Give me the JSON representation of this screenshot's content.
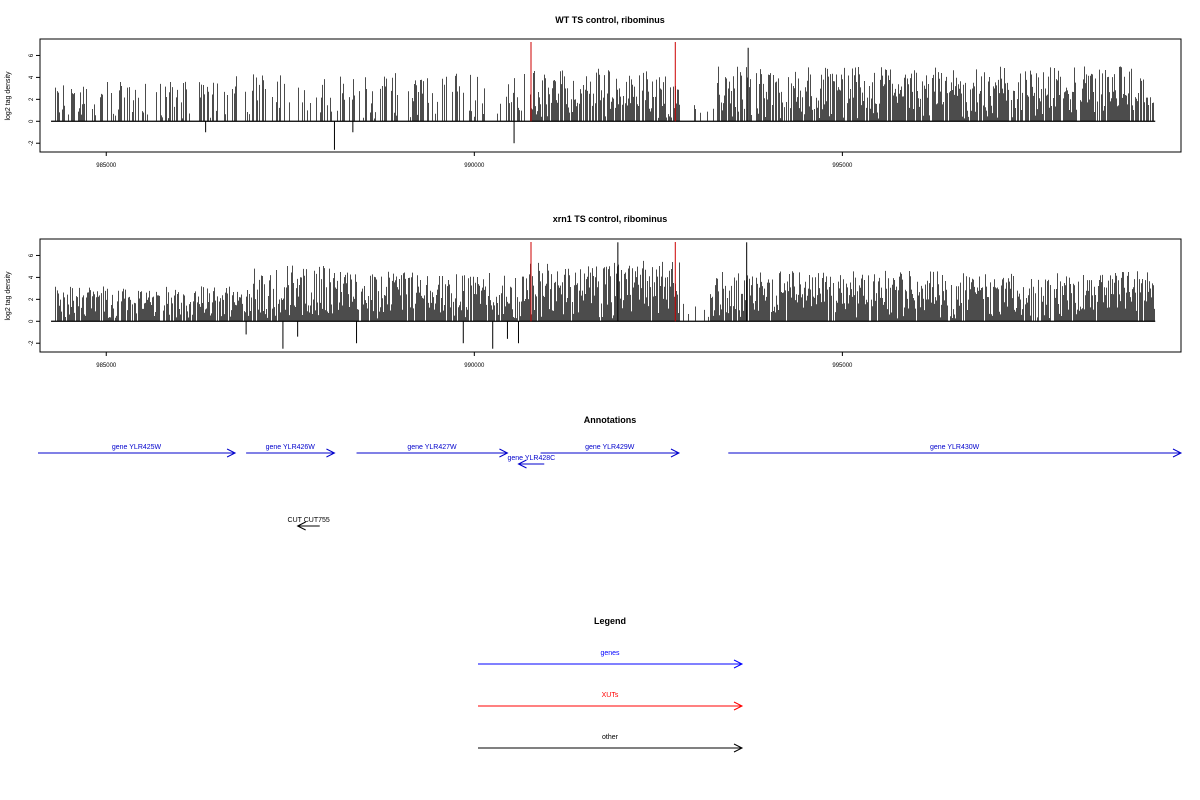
{
  "chart_data": [
    {
      "type": "bar",
      "title": "WT TS control, ribominus",
      "ylabel": "log2 tag density",
      "xlim": [
        984100,
        999600
      ],
      "ylim": [
        -2.8,
        7.5
      ],
      "x_ticks": [
        985000,
        990000,
        995000
      ],
      "x_tick_labels": [
        "985000",
        "990000",
        "995000"
      ],
      "y_ticks": [
        -2,
        0,
        2,
        4,
        6
      ],
      "y_tick_labels": [
        "-2",
        "0",
        "2",
        "4",
        "6"
      ],
      "gene_range": [
        984250,
        999250
      ],
      "markers": [
        990770,
        992730
      ],
      "marker_color": "#cc0000",
      "regions": [
        {
          "from": 984300,
          "to": 986700,
          "density": 0.45,
          "max": 3.6
        },
        {
          "from": 986700,
          "to": 990700,
          "density": 0.4,
          "max": 4.4
        },
        {
          "from": 990750,
          "to": 992800,
          "density": 0.9,
          "max": 4.9
        },
        {
          "from": 992800,
          "to": 993300,
          "density": 0.15,
          "max": 1.5
        },
        {
          "from": 993300,
          "to": 999250,
          "density": 0.85,
          "max": 5.0
        }
      ],
      "notable_bars": [
        {
          "x": 993720,
          "y": 6.7
        },
        {
          "x": 988100,
          "y": -2.6
        },
        {
          "x": 990540,
          "y": -2.0
        },
        {
          "x": 986350,
          "y": -1.0
        },
        {
          "x": 988350,
          "y": -1.0
        }
      ]
    },
    {
      "type": "bar",
      "title": "xrn1 TS control, ribominus",
      "ylabel": "log2 tag density",
      "xlim": [
        984100,
        999600
      ],
      "ylim": [
        -2.8,
        7.5
      ],
      "x_ticks": [
        985000,
        990000,
        995000
      ],
      "x_tick_labels": [
        "985000",
        "990000",
        "995000"
      ],
      "y_ticks": [
        -2,
        0,
        2,
        4,
        6
      ],
      "y_tick_labels": [
        "-2",
        "0",
        "2",
        "4",
        "6"
      ],
      "gene_range": [
        984250,
        999250
      ],
      "markers": [
        990770,
        992730
      ],
      "marker_color": "#cc0000",
      "regions": [
        {
          "from": 984300,
          "to": 987000,
          "density": 0.9,
          "max": 3.2
        },
        {
          "from": 987000,
          "to": 988100,
          "density": 1.0,
          "max": 5.2
        },
        {
          "from": 988100,
          "to": 990750,
          "density": 0.95,
          "max": 4.6
        },
        {
          "from": 990750,
          "to": 992800,
          "density": 1.0,
          "max": 5.6
        },
        {
          "from": 992800,
          "to": 993200,
          "density": 0.2,
          "max": 1.6
        },
        {
          "from": 993200,
          "to": 999250,
          "density": 0.95,
          "max": 4.6
        }
      ],
      "notable_bars": [
        {
          "x": 991950,
          "y": 7.2
        },
        {
          "x": 993700,
          "y": 7.2
        },
        {
          "x": 987400,
          "y": -2.5
        },
        {
          "x": 990250,
          "y": -2.5
        },
        {
          "x": 988400,
          "y": -2.0
        },
        {
          "x": 989850,
          "y": -2.0
        },
        {
          "x": 990600,
          "y": -2.0
        },
        {
          "x": 986900,
          "y": -1.2
        },
        {
          "x": 987600,
          "y": -1.4
        },
        {
          "x": 990450,
          "y": -1.6
        }
      ]
    }
  ],
  "annotations": {
    "title": "Annotations",
    "features": [
      {
        "label": "gene YLR425W",
        "start": 983600,
        "end": 986750,
        "strand": "+",
        "row": 0,
        "color": "#0000cc"
      },
      {
        "label": "gene YLR426W",
        "start": 986900,
        "end": 988100,
        "strand": "+",
        "row": 0,
        "color": "#0000cc"
      },
      {
        "label": "gene YLR427W",
        "start": 988400,
        "end": 990450,
        "strand": "+",
        "row": 0,
        "color": "#0000cc"
      },
      {
        "label": "gene YLR428C",
        "start": 990600,
        "end": 990950,
        "strand": "-",
        "row": 1,
        "color": "#0000cc"
      },
      {
        "label": "gene YLR429W",
        "start": 990900,
        "end": 992780,
        "strand": "+",
        "row": 0,
        "color": "#0000cc"
      },
      {
        "label": "gene YLR430W",
        "start": 993450,
        "end": 999600,
        "strand": "+",
        "row": 0,
        "color": "#0000cc"
      },
      {
        "label": "CUT CUT755",
        "start": 987600,
        "end": 987900,
        "strand": "-",
        "row": 2,
        "color": "#000000"
      }
    ]
  },
  "legend": {
    "title": "Legend",
    "items": [
      {
        "label": "genes",
        "color": "#0000ff"
      },
      {
        "label": "XUTs",
        "color": "#ff0000"
      },
      {
        "label": "other",
        "color": "#000000"
      }
    ]
  }
}
